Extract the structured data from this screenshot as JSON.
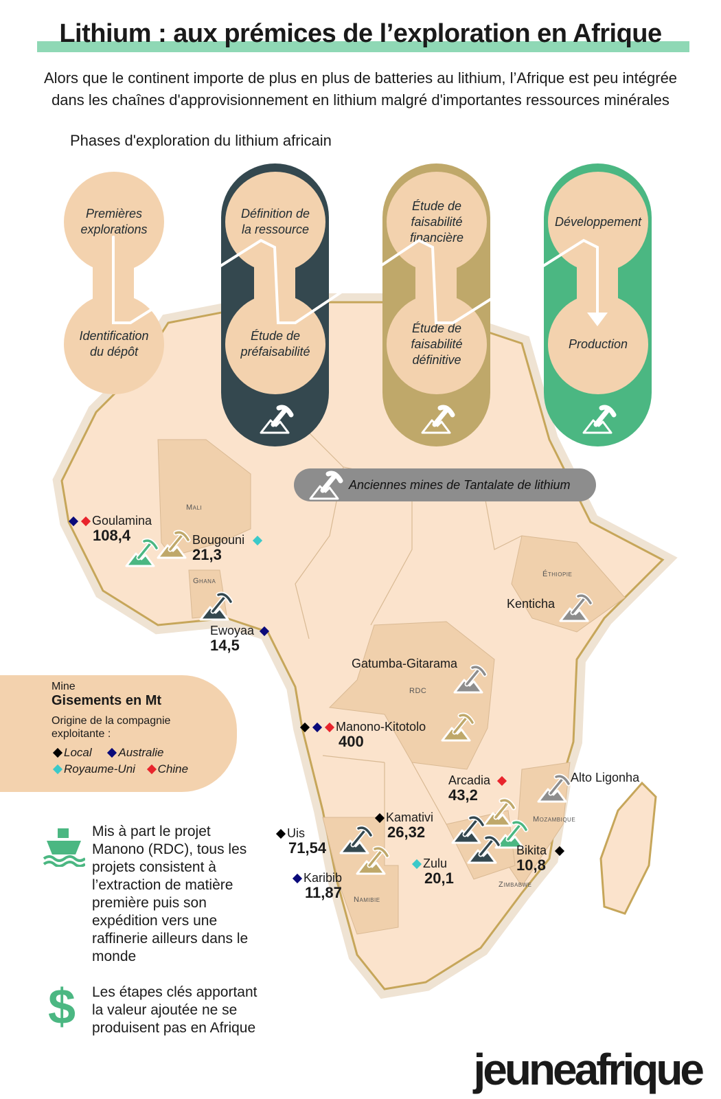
{
  "title": "Lithium : aux prémices de l’exploration en Afrique",
  "subtitle_line1": "Alors que le continent importe de plus en plus de batteries au lithium, l’Afrique est peu intégrée",
  "subtitle_line2": "dans les chaînes d'approvisionnement en lithium malgré d'importantes ressources minérales",
  "phases_title": "Phases d'exploration du lithium africain",
  "colors": {
    "light": "#f3d2ae",
    "dark": "#34484f",
    "gold": "#bfa86a",
    "green": "#4bb782",
    "grey": "#8d8d8d",
    "local": "#000000",
    "australie": "#0a0a7a",
    "royaume_uni": "#3bc9c9",
    "chine": "#e8242c",
    "map": "#fbe3cc",
    "map_hl": "#f0d0ac",
    "border": "#c6a65a"
  },
  "phases": [
    {
      "top": [
        "Premières",
        "explorations"
      ],
      "bottom": [
        "Identification",
        "du dépôt"
      ]
    },
    {
      "top": [
        "Définition de",
        "la ressource"
      ],
      "bottom": [
        "Étude de",
        "préfaisabilité"
      ]
    },
    {
      "top": [
        "Étude de",
        "faisabilité",
        "financière"
      ],
      "bottom": [
        "Étude de",
        "faisabilité",
        "définitive"
      ]
    },
    {
      "top": [
        "Développement"
      ],
      "bottom": [
        "Production"
      ]
    }
  ],
  "old_mines_label": "Anciennes mines de Tantalate de lithium",
  "countries": {
    "mali": "Mali",
    "ghana": "Ghana",
    "ethiopie": "Éthiopie",
    "rdc": "RDC",
    "mozambique": "Mozambique",
    "namibie": "Namibie",
    "zimbabwe": "Zimbabwe"
  },
  "mines": [
    {
      "name": "Goulamina",
      "value": "108,4"
    },
    {
      "name": "Bougouni",
      "value": "21,3"
    },
    {
      "name": "Ewoyaa",
      "value": "14,5"
    },
    {
      "name": "Kenticha",
      "value": ""
    },
    {
      "name": "Gatumba-Gitarama",
      "value": ""
    },
    {
      "name": "Manono-Kitotolo",
      "value": "400"
    },
    {
      "name": "Arcadia",
      "value": "43,2"
    },
    {
      "name": "Alto Ligonha",
      "value": ""
    },
    {
      "name": "Kamativi",
      "value": "26,32"
    },
    {
      "name": "Uis",
      "value": "71,54"
    },
    {
      "name": "Zulu",
      "value": "20,1"
    },
    {
      "name": "Bikita",
      "value": "10,8"
    },
    {
      "name": "Karibib",
      "value": "11,87"
    }
  ],
  "legend": {
    "mine": "Mine",
    "gisements": "Gisements en Mt",
    "origine": "Origine de la compagnie exploitante :",
    "local": "Local",
    "australie": "Australie",
    "royaume_uni": "Royaume-Uni",
    "chine": "Chine"
  },
  "notes": {
    "ship": [
      "Mis à part le projet",
      "Manono (RDC), tous les",
      "projets consistent à",
      "l’extraction de matière",
      "première puis son",
      "expédition vers une",
      "raffinerie ailleurs dans le",
      "monde"
    ],
    "dollar": [
      "Les étapes clés apportant",
      "la valeur ajoutée ne se",
      "produisent pas en Afrique"
    ]
  },
  "brand": "jeuneafrique"
}
